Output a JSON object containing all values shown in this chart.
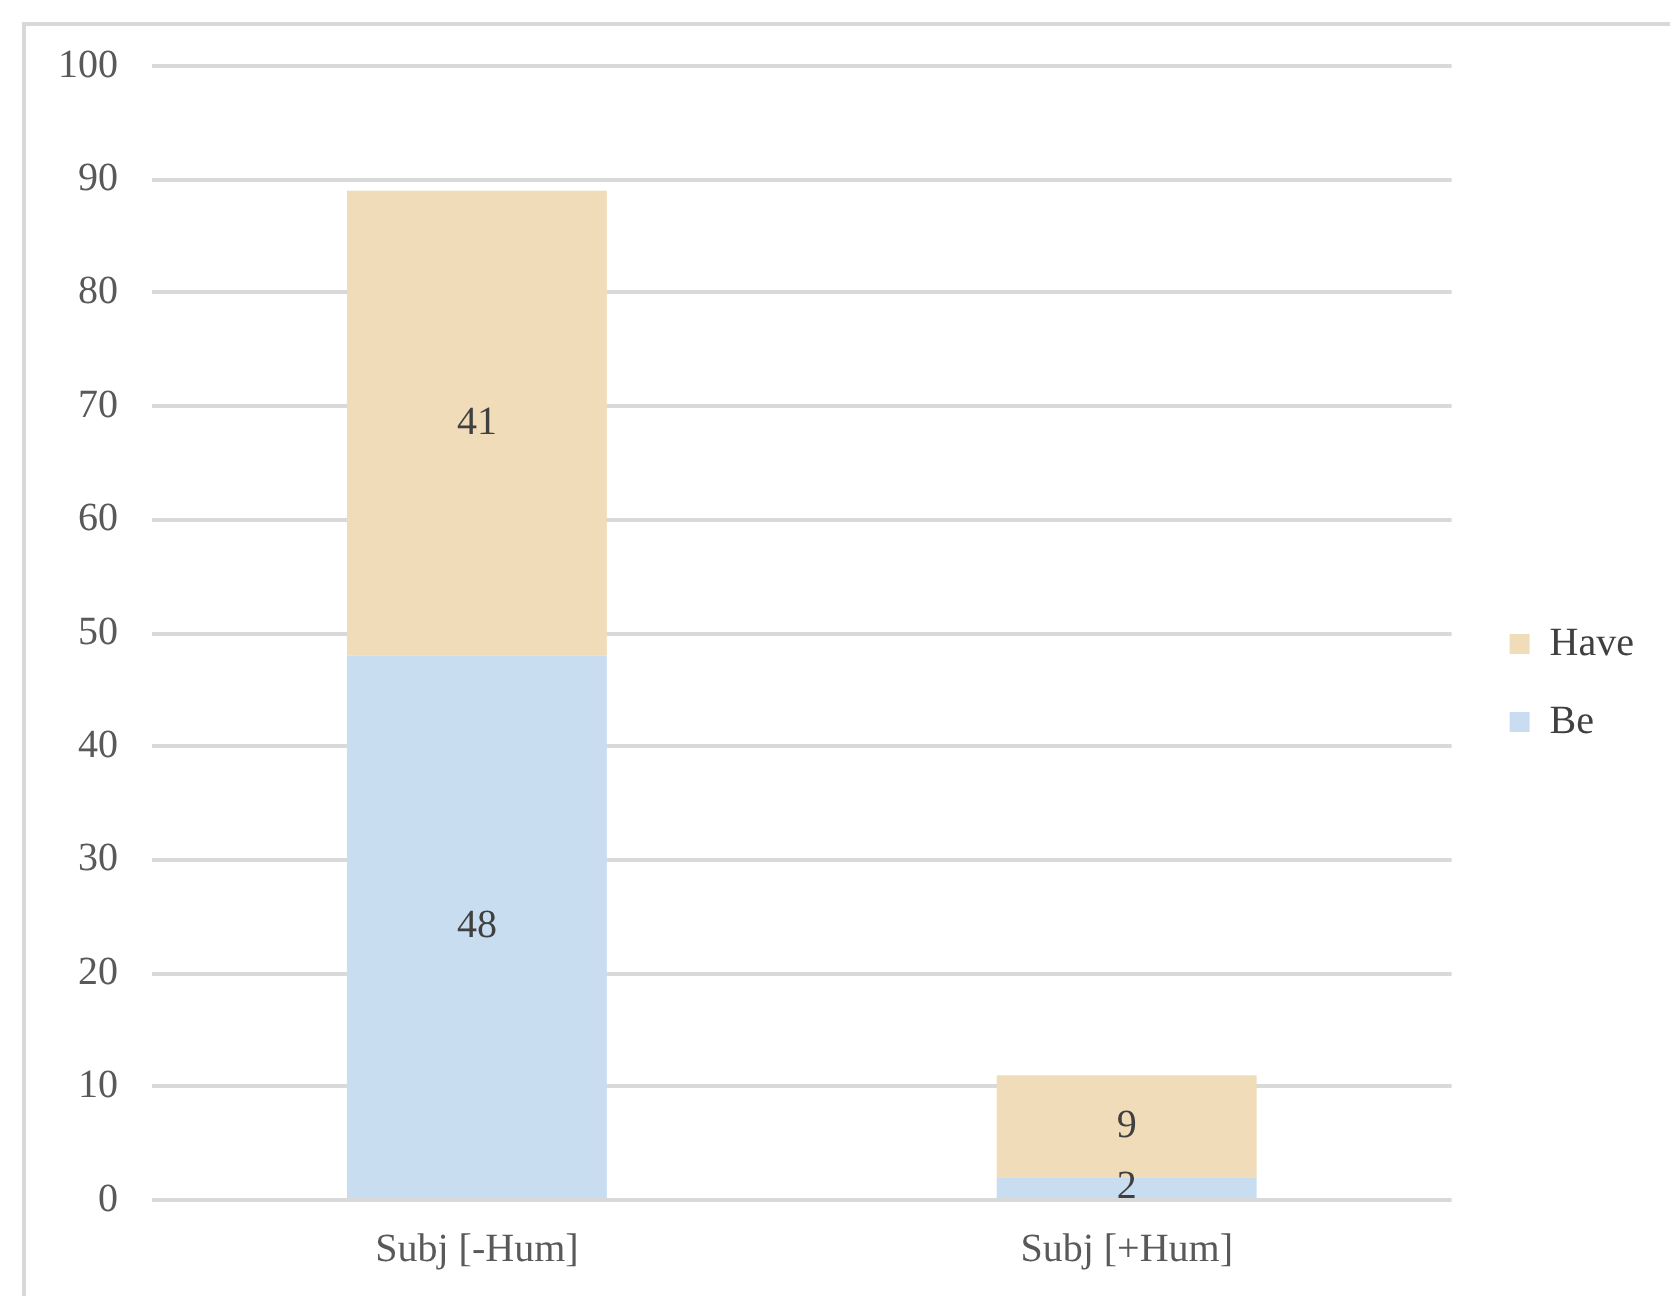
{
  "chart_data": {
    "type": "bar",
    "categories": [
      "Subj [-Hum]",
      "Subj [+Hum]"
    ],
    "series": [
      {
        "name": "Be",
        "color": "#c9ddf1",
        "values": [
          48,
          2
        ]
      },
      {
        "name": "Have",
        "color": "#f0dcb8",
        "values": [
          41,
          9
        ]
      }
    ],
    "stacked": true,
    "ylim": [
      0,
      100
    ],
    "yticks": [
      0,
      10,
      20,
      30,
      40,
      50,
      60,
      70,
      80,
      90,
      100
    ],
    "grid": "y",
    "legend": "right",
    "data_labels": true
  }
}
